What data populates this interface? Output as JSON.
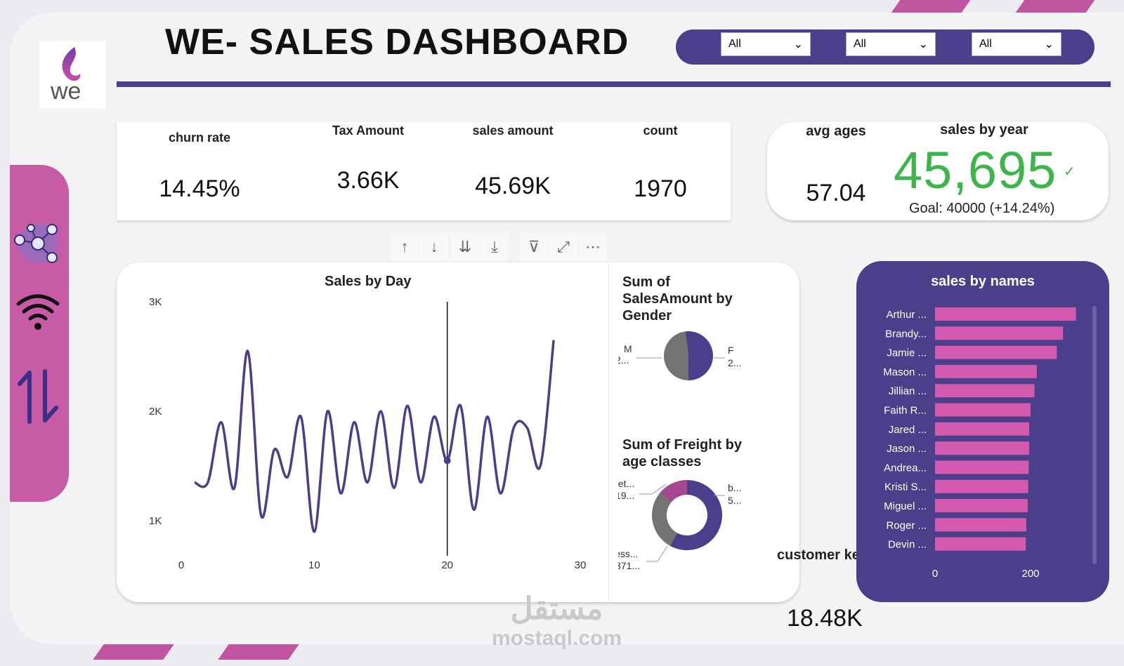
{
  "header": {
    "title": "WE- SALES DASHBOARD",
    "logo_text": "we"
  },
  "slicers": [
    {
      "value": "All"
    },
    {
      "value": "All"
    },
    {
      "value": "All"
    }
  ],
  "kpis": [
    {
      "label": "churn rate",
      "value": "14.45%"
    },
    {
      "label": "Tax Amount",
      "value": "3.66K"
    },
    {
      "label": "sales amount",
      "value": "45.69K"
    },
    {
      "label": "count",
      "value": "1970"
    }
  ],
  "kpi_right": {
    "avg_label": "avg ages",
    "avg_value": "57.04",
    "year_label": "sales by year",
    "year_value": "45,695",
    "year_check": "✓",
    "goal": "Goal: 40000 (+14.24%)"
  },
  "toolbar": [
    "↑",
    "↓",
    "⇊",
    "⤓",
    "⊽",
    "⤢",
    "⋯"
  ],
  "customer_key": {
    "label": "customer key",
    "value": "18.48K"
  },
  "watermark": {
    "line1": "مستقل",
    "line2": "mostaql.com"
  },
  "colors": {
    "purple": "#4b3f8c",
    "pink": "#c75ba6",
    "green": "#3cb54a",
    "bar_pink": "#d45ab0"
  },
  "chart_data": [
    {
      "type": "line",
      "title": "Sales by Day",
      "x": [
        1,
        2,
        3,
        4,
        5,
        6,
        7,
        8,
        9,
        10,
        11,
        12,
        13,
        14,
        15,
        16,
        17,
        18,
        19,
        20,
        21,
        22,
        23,
        24,
        25,
        26,
        27,
        28
      ],
      "y": [
        1350,
        1350,
        1900,
        1300,
        2550,
        1050,
        1650,
        1400,
        1950,
        900,
        2000,
        1250,
        1900,
        1350,
        2000,
        1300,
        2050,
        1350,
        1950,
        1550,
        2050,
        1100,
        1950,
        1250,
        1850,
        1850,
        1500,
        2650
      ],
      "xlim": [
        0,
        30
      ],
      "ylim": [
        500,
        3000
      ],
      "xticks": [
        "0",
        "10",
        "20",
        "30"
      ],
      "yticks": [
        "1K",
        "2K",
        "3K"
      ],
      "highlight": {
        "x": 20,
        "y": 1550
      }
    },
    {
      "type": "pie",
      "title": "Sum of SalesAmount by Gender",
      "categories": [
        "M",
        "F"
      ],
      "labels": [
        {
          "name": "M",
          "value": "2..."
        },
        {
          "name": "F",
          "value": "2..."
        }
      ],
      "values": [
        48,
        52
      ],
      "colors": [
        "#737373",
        "#4b3f8c"
      ]
    },
    {
      "type": "pie",
      "title": "Sum of Freight by age classes",
      "categories": [
        "b...",
        "less...",
        "bet..."
      ],
      "labels": [
        {
          "name": "bet...",
          "value": "19..."
        },
        {
          "name": "b...",
          "value": "5..."
        },
        {
          "name": "less...",
          "value": "371..."
        }
      ],
      "values": [
        58,
        28,
        14
      ],
      "colors": [
        "#4b3f8c",
        "#737373",
        "#a5468f"
      ]
    },
    {
      "type": "bar",
      "title": "sales by names",
      "categories": [
        "Arthur ...",
        "Brandy...",
        "Jamie ...",
        "Mason ...",
        "Jillian ...",
        "Faith R...",
        "Jared ...",
        "Jason ...",
        "Andrea...",
        "Kristi S...",
        "Miguel ...",
        "Roger ...",
        "Devin ..."
      ],
      "values": [
        295,
        268,
        255,
        213,
        208,
        200,
        197,
        197,
        196,
        195,
        194,
        191,
        190
      ],
      "xlim": [
        0,
        300
      ],
      "xticks": [
        "0",
        "200"
      ]
    }
  ]
}
